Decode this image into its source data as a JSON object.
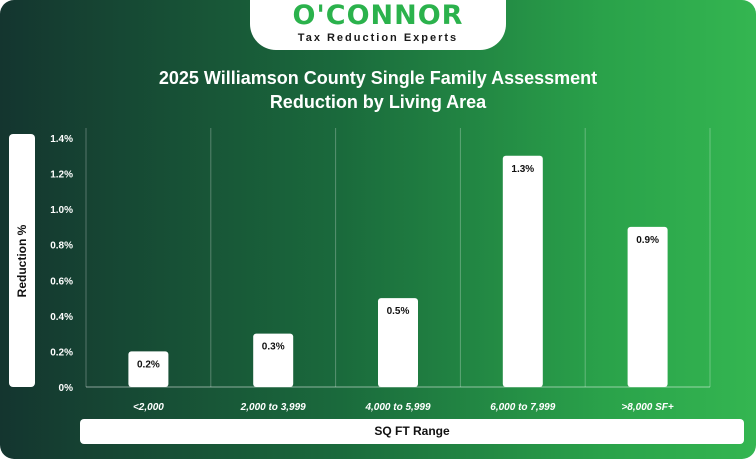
{
  "logo": {
    "wordmark": "O'CONNOR",
    "tagline": "Tax Reduction Experts"
  },
  "colors": {
    "brand_green": "#2bb24c",
    "bar": "#ffffff",
    "grid": "#ffffff"
  },
  "chart_data": {
    "type": "bar",
    "title_line1": "2025 Williamson County Single Family Assessment",
    "title_line2": "Reduction by Living Area",
    "xlabel": "SQ FT Range",
    "ylabel": "Reduction %",
    "categories": [
      "<2,000",
      "2,000 to 3,999",
      "4,000 to 5,999",
      "6,000 to 7,999",
      ">8,000 SF+"
    ],
    "values": [
      0.2,
      0.3,
      0.5,
      1.3,
      0.9
    ],
    "value_labels": [
      "0.2%",
      "0.3%",
      "0.5%",
      "1.3%",
      "0.9%"
    ],
    "ylim": [
      0,
      1.4
    ],
    "yticks": [
      0,
      0.2,
      0.4,
      0.6,
      0.8,
      1.0,
      1.2,
      1.4
    ],
    "ytick_labels": [
      "0%",
      "0.2%",
      "0.4%",
      "0.6%",
      "0.8%",
      "1.0%",
      "1.2%",
      "1.4%"
    ],
    "grid": "vertical",
    "legend": "none"
  }
}
